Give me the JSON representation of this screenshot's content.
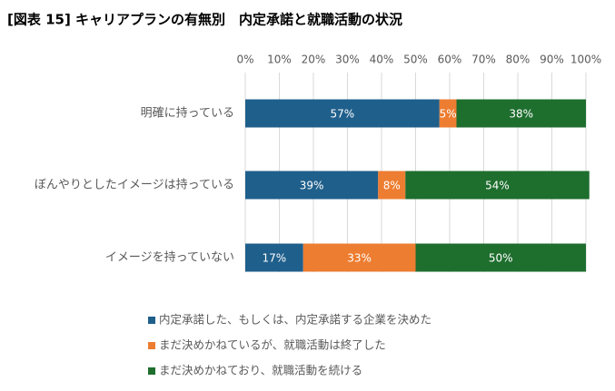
{
  "chart_data": {
    "type": "stacked_bar_horizontal",
    "title": "[図表 15] キャリアプランの有無別　内定承諾と就職活動の状況",
    "categories": [
      "明確に持っている",
      "ぼんやりとしたイメージは持っている",
      "イメージを持っていない"
    ],
    "series": [
      {
        "name": "内定承諾した、もしくは、内定承諾する企業を決めた",
        "color": "#1f5f8b",
        "values": [
          57,
          39,
          17
        ],
        "value_labels": [
          "57%",
          "39%",
          "17%"
        ]
      },
      {
        "name": "まだ決めかねているが、就職活動は終了した",
        "color": "#ed7d31",
        "values": [
          5,
          8,
          33
        ],
        "value_labels": [
          "5%",
          "8%",
          "33%"
        ]
      },
      {
        "name": "まだ決めかねており、就職活動を続ける",
        "color": "#1e6e2e",
        "values": [
          38,
          54,
          50
        ],
        "value_labels": [
          "38%",
          "54%",
          "50%"
        ]
      }
    ],
    "xlim": [
      0,
      100
    ],
    "xticks": [
      {
        "value": 0,
        "label": "0%"
      },
      {
        "value": 10,
        "label": "10%"
      },
      {
        "value": 20,
        "label": "20%"
      },
      {
        "value": 30,
        "label": "30%"
      },
      {
        "value": 40,
        "label": "40%"
      },
      {
        "value": 50,
        "label": "50%"
      },
      {
        "value": 60,
        "label": "60%"
      },
      {
        "value": 70,
        "label": "70%"
      },
      {
        "value": 80,
        "label": "80%"
      },
      {
        "value": 90,
        "label": "90%"
      },
      {
        "value": 100,
        "label": "100%"
      }
    ],
    "grid": true
  }
}
